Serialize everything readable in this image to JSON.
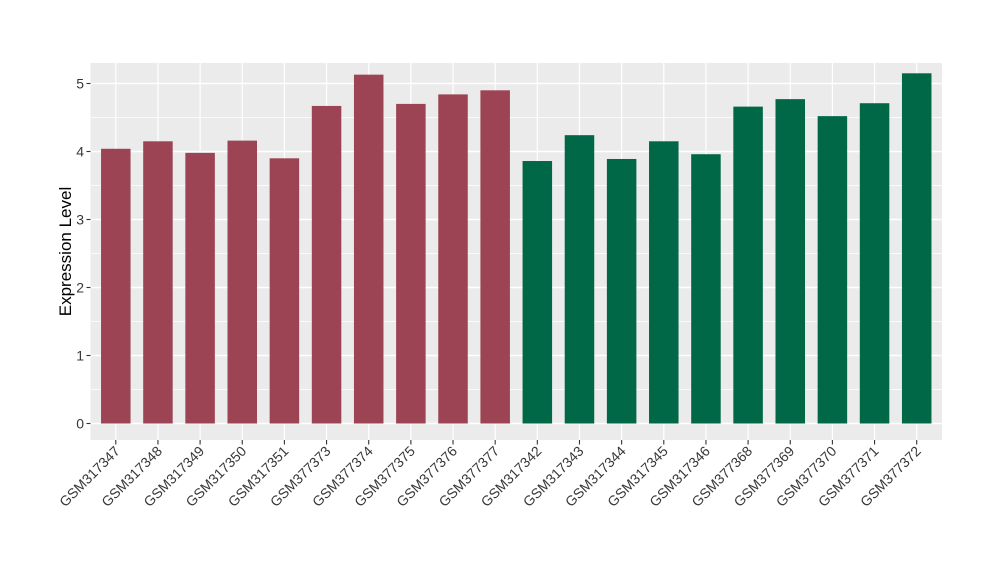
{
  "figure": {
    "background": "#FFFFFF",
    "panel_background": "#EBEBEB",
    "grid_color": "#FFFFFF",
    "axis_text_color": "#383838",
    "axis_title_color": "#000000",
    "tick_mark_color": "#333333"
  },
  "chart_data": {
    "type": "bar",
    "title": "",
    "xlabel": "",
    "ylabel": "Expression Level",
    "ylim": [
      0,
      5.3
    ],
    "yticks": [
      0,
      1,
      2,
      3,
      4,
      5
    ],
    "yticks_minor": [
      0.5,
      1.5,
      2.5,
      3.5,
      4.5
    ],
    "grid": "on",
    "legend": "none",
    "bar_width_ratio": 0.7,
    "x_label_angle_deg": 45,
    "groups": [
      {
        "name": "maroon-group",
        "color": "#9C4453",
        "categories": [
          "GSM317347",
          "GSM317348",
          "GSM317349",
          "GSM317350",
          "GSM317351",
          "GSM377373",
          "GSM377374",
          "GSM377375",
          "GSM377376",
          "GSM377377"
        ],
        "values": [
          4.04,
          4.15,
          3.98,
          4.16,
          3.9,
          4.67,
          5.13,
          4.7,
          4.84,
          4.9
        ]
      },
      {
        "name": "green-group",
        "color": "#006747",
        "categories": [
          "GSM317342",
          "GSM317343",
          "GSM317344",
          "GSM317345",
          "GSM317346",
          "GSM377368",
          "GSM377369",
          "GSM377370",
          "GSM377371",
          "GSM377372"
        ],
        "values": [
          3.86,
          4.24,
          3.89,
          4.15,
          3.96,
          4.66,
          4.77,
          4.52,
          4.71,
          5.15
        ]
      }
    ]
  }
}
